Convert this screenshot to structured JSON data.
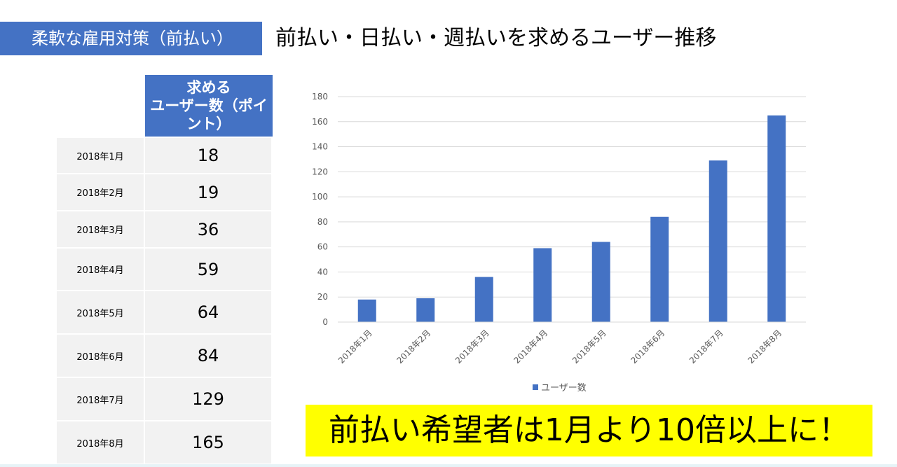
{
  "section_tag": "柔軟な雇用対策（前払い）",
  "slide_title": "前払い・日払い・週払いを求めるユーザー推移",
  "table": {
    "column_header": "求める\nユーザー数（ポイント）",
    "rows": [
      {
        "month": "2018年1月",
        "value": "18"
      },
      {
        "month": "2018年2月",
        "value": "19"
      },
      {
        "month": "2018年3月",
        "value": "36"
      },
      {
        "month": "2018年4月",
        "value": "59"
      },
      {
        "month": "2018年5月",
        "value": "64"
      },
      {
        "month": "2018年6月",
        "value": "84"
      },
      {
        "month": "2018年7月",
        "value": "129"
      },
      {
        "month": "2018年8月",
        "value": "165"
      }
    ]
  },
  "callout": "前払い希望者は1月より10倍以上に！",
  "colors": {
    "accent": "#4472C4",
    "callout_bg": "#FFFF00",
    "table_cell": "#F2F2F2"
  },
  "chart_data": {
    "type": "bar",
    "categories": [
      "2018年1月",
      "2018年2月",
      "2018年3月",
      "2018年4月",
      "2018年5月",
      "2018年6月",
      "2018年7月",
      "2018年8月"
    ],
    "series": [
      {
        "name": "ユーザー数",
        "values": [
          18,
          19,
          36,
          59,
          64,
          84,
          129,
          165
        ]
      }
    ],
    "ylim": [
      0,
      180
    ],
    "yticks": [
      0,
      20,
      40,
      60,
      80,
      100,
      120,
      140,
      160,
      180
    ],
    "grid": true,
    "legend": "bottom"
  }
}
